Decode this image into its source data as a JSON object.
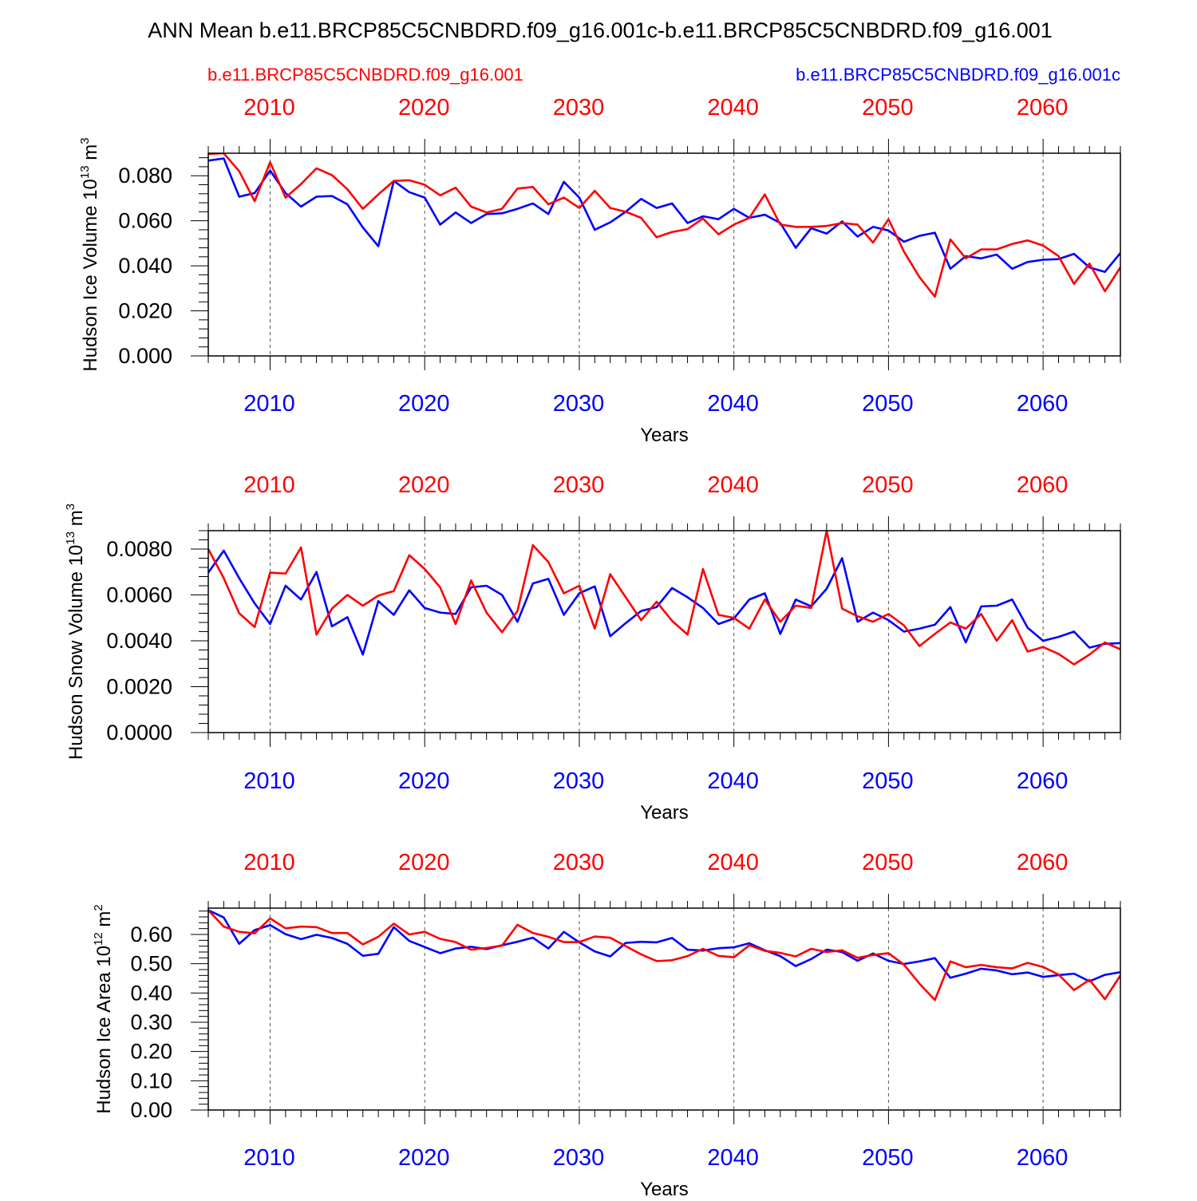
{
  "title": "ANN Mean b.e11.BRCP85C5CNBDRD.f09_g16.001c-b.e11.BRCP85C5CNBDRD.f09_g16.001",
  "legend": {
    "left_label": "b.e11.BRCP85C5CNBDRD.f09_g16.001",
    "right_label": "b.e11.BRCP85C5CNBDRD.f09_g16.001c",
    "left_color": "#ff0000",
    "right_color": "#0000ff"
  },
  "colors": {
    "case_a": "#ff0000",
    "case_b": "#0000ff",
    "axis": "#000000",
    "grid": "#555555"
  },
  "chart_data": [
    {
      "type": "line",
      "xlabel": "Years",
      "ylabel": "Hudson Ice Volume 10",
      "ylabel_sup": "13",
      "ylabel_unit": "m",
      "ylabel_unit_sup": "3",
      "xlim": [
        2006,
        2065
      ],
      "ylim": [
        0,
        0.09
      ],
      "xticks": [
        2010,
        2020,
        2030,
        2040,
        2050,
        2060
      ],
      "xtick_labels": [
        "2010",
        "2020",
        "2030",
        "2040",
        "2050",
        "2060"
      ],
      "yticks": [
        0,
        0.02,
        0.04,
        0.06,
        0.08
      ],
      "ytick_labels": [
        "0.000",
        "0.020",
        "0.040",
        "0.060",
        "0.080"
      ],
      "x": [
        2006,
        2007,
        2008,
        2009,
        2010,
        2011,
        2012,
        2013,
        2014,
        2015,
        2016,
        2017,
        2018,
        2019,
        2020,
        2021,
        2022,
        2023,
        2024,
        2025,
        2026,
        2027,
        2028,
        2029,
        2030,
        2031,
        2032,
        2033,
        2034,
        2035,
        2036,
        2037,
        2038,
        2039,
        2040,
        2041,
        2042,
        2043,
        2044,
        2045,
        2046,
        2047,
        2048,
        2049,
        2050,
        2051,
        2052,
        2053,
        2054,
        2055,
        2056,
        2057,
        2058,
        2059,
        2060,
        2061,
        2062,
        2063,
        2064,
        2065
      ],
      "series": [
        {
          "name": "b.e11.BRCP85C5CNBDRD.f09_g16.001",
          "color": "#ff0000",
          "values": [
            0.0897,
            0.09,
            0.082,
            0.0687,
            0.086,
            0.0703,
            0.0763,
            0.0833,
            0.0803,
            0.074,
            0.0653,
            0.0717,
            0.0777,
            0.078,
            0.076,
            0.0713,
            0.0747,
            0.0663,
            0.0637,
            0.0653,
            0.0743,
            0.075,
            0.0673,
            0.0703,
            0.0657,
            0.0733,
            0.0657,
            0.064,
            0.0613,
            0.0527,
            0.055,
            0.0563,
            0.061,
            0.054,
            0.0583,
            0.0613,
            0.0717,
            0.0583,
            0.0573,
            0.0573,
            0.0577,
            0.059,
            0.0583,
            0.0503,
            0.0607,
            0.0463,
            0.035,
            0.0263,
            0.0517,
            0.0433,
            0.0473,
            0.0473,
            0.0497,
            0.0513,
            0.049,
            0.0443,
            0.032,
            0.041,
            0.0287,
            0.0393
          ]
        },
        {
          "name": "b.e11.BRCP85C5CNBDRD.f09_g16.001c",
          "color": "#0000ff",
          "values": [
            0.0867,
            0.0877,
            0.0707,
            0.0723,
            0.0823,
            0.0723,
            0.0663,
            0.0707,
            0.071,
            0.0673,
            0.057,
            0.0487,
            0.0777,
            0.0727,
            0.0703,
            0.0583,
            0.0637,
            0.059,
            0.063,
            0.0633,
            0.0653,
            0.0677,
            0.063,
            0.0773,
            0.0703,
            0.056,
            0.0593,
            0.064,
            0.0697,
            0.0657,
            0.0677,
            0.059,
            0.062,
            0.0607,
            0.0653,
            0.0613,
            0.0627,
            0.059,
            0.048,
            0.0567,
            0.0543,
            0.0597,
            0.053,
            0.0573,
            0.0557,
            0.0507,
            0.0533,
            0.0547,
            0.0387,
            0.0443,
            0.0433,
            0.045,
            0.0387,
            0.0417,
            0.0427,
            0.043,
            0.0453,
            0.0393,
            0.0373,
            0.0457
          ]
        }
      ]
    },
    {
      "type": "line",
      "xlabel": "Years",
      "ylabel": "Hudson Snow Volume 10",
      "ylabel_sup": "13",
      "ylabel_unit": "m",
      "ylabel_unit_sup": "3",
      "xlim": [
        2006,
        2065
      ],
      "ylim": [
        0,
        0.0088
      ],
      "xticks": [
        2010,
        2020,
        2030,
        2040,
        2050,
        2060
      ],
      "xtick_labels": [
        "2010",
        "2020",
        "2030",
        "2040",
        "2050",
        "2060"
      ],
      "yticks": [
        0,
        0.002,
        0.004,
        0.006,
        0.008
      ],
      "ytick_labels": [
        "0.0000",
        "0.0020",
        "0.0040",
        "0.0060",
        "0.0080"
      ],
      "x": [
        2006,
        2007,
        2008,
        2009,
        2010,
        2011,
        2012,
        2013,
        2014,
        2015,
        2016,
        2017,
        2018,
        2019,
        2020,
        2021,
        2022,
        2023,
        2024,
        2025,
        2026,
        2027,
        2028,
        2029,
        2030,
        2031,
        2032,
        2033,
        2034,
        2035,
        2036,
        2037,
        2038,
        2039,
        2040,
        2041,
        2042,
        2043,
        2044,
        2045,
        2046,
        2047,
        2048,
        2049,
        2050,
        2051,
        2052,
        2053,
        2054,
        2055,
        2056,
        2057,
        2058,
        2059,
        2060,
        2061,
        2062,
        2063,
        2064,
        2065
      ],
      "series": [
        {
          "name": "b.e11.BRCP85C5CNBDRD.f09_g16.001",
          "color": "#ff0000",
          "values": [
            0.008,
            0.00673,
            0.0052,
            0.0046,
            0.00697,
            0.00693,
            0.00807,
            0.00427,
            0.0054,
            0.006,
            0.00553,
            0.00597,
            0.00617,
            0.00773,
            0.00713,
            0.00633,
            0.00473,
            0.00663,
            0.00523,
            0.00437,
            0.0053,
            0.00817,
            0.00743,
            0.00607,
            0.0064,
            0.00453,
            0.0069,
            0.0059,
            0.0049,
            0.0057,
            0.00487,
            0.00427,
            0.00713,
            0.00513,
            0.005,
            0.00453,
            0.0058,
            0.00483,
            0.00553,
            0.00543,
            0.0088,
            0.0054,
            0.00507,
            0.00483,
            0.00517,
            0.00467,
            0.00377,
            0.0043,
            0.0048,
            0.00453,
            0.00517,
            0.004,
            0.0049,
            0.00353,
            0.00373,
            0.00343,
            0.00297,
            0.0034,
            0.00393,
            0.00363
          ]
        },
        {
          "name": "b.e11.BRCP85C5CNBDRD.f09_g16.001c",
          "color": "#0000ff",
          "values": [
            0.00697,
            0.00793,
            0.00673,
            0.00563,
            0.00473,
            0.0064,
            0.0058,
            0.007,
            0.00463,
            0.00503,
            0.0034,
            0.00573,
            0.00513,
            0.0062,
            0.00543,
            0.00523,
            0.00517,
            0.00633,
            0.0064,
            0.006,
            0.00483,
            0.0065,
            0.0067,
            0.00513,
            0.00607,
            0.00637,
            0.0042,
            0.00477,
            0.0053,
            0.00547,
            0.0063,
            0.0059,
            0.00543,
            0.00473,
            0.00497,
            0.0058,
            0.00607,
            0.0043,
            0.0058,
            0.0055,
            0.00627,
            0.0076,
            0.00483,
            0.00523,
            0.0049,
            0.0044,
            0.00453,
            0.0047,
            0.00547,
            0.00393,
            0.0055,
            0.00553,
            0.0058,
            0.00457,
            0.004,
            0.00417,
            0.0044,
            0.0037,
            0.00387,
            0.0039
          ]
        }
      ]
    },
    {
      "type": "line",
      "xlabel": "Years",
      "ylabel": "Hudson Ice Area 10",
      "ylabel_sup": "12",
      "ylabel_unit": "m",
      "ylabel_unit_sup": "2",
      "xlim": [
        2006,
        2065
      ],
      "ylim": [
        0,
        0.69
      ],
      "xticks": [
        2010,
        2020,
        2030,
        2040,
        2050,
        2060
      ],
      "xtick_labels": [
        "2010",
        "2020",
        "2030",
        "2040",
        "2050",
        "2060"
      ],
      "yticks": [
        0,
        0.1,
        0.2,
        0.3,
        0.4,
        0.5,
        0.6
      ],
      "ytick_labels": [
        "0.00",
        "0.10",
        "0.20",
        "0.30",
        "0.40",
        "0.50",
        "0.60"
      ],
      "x": [
        2006,
        2007,
        2008,
        2009,
        2010,
        2011,
        2012,
        2013,
        2014,
        2015,
        2016,
        2017,
        2018,
        2019,
        2020,
        2021,
        2022,
        2023,
        2024,
        2025,
        2026,
        2027,
        2028,
        2029,
        2030,
        2031,
        2032,
        2033,
        2034,
        2035,
        2036,
        2037,
        2038,
        2039,
        2040,
        2041,
        2042,
        2043,
        2044,
        2045,
        2046,
        2047,
        2048,
        2049,
        2050,
        2051,
        2052,
        2053,
        2054,
        2055,
        2056,
        2057,
        2058,
        2059,
        2060,
        2061,
        2062,
        2063,
        2064,
        2065
      ],
      "series": [
        {
          "name": "b.e11.BRCP85C5CNBDRD.f09_g16.001",
          "color": "#ff0000",
          "values": [
            0.683,
            0.627,
            0.609,
            0.604,
            0.655,
            0.621,
            0.627,
            0.625,
            0.605,
            0.605,
            0.566,
            0.592,
            0.637,
            0.6,
            0.609,
            0.585,
            0.574,
            0.548,
            0.554,
            0.562,
            0.633,
            0.605,
            0.592,
            0.574,
            0.574,
            0.593,
            0.589,
            0.56,
            0.532,
            0.509,
            0.512,
            0.526,
            0.551,
            0.527,
            0.522,
            0.563,
            0.544,
            0.537,
            0.525,
            0.551,
            0.54,
            0.546,
            0.52,
            0.53,
            0.536,
            0.497,
            0.432,
            0.376,
            0.508,
            0.488,
            0.496,
            0.488,
            0.484,
            0.503,
            0.489,
            0.463,
            0.41,
            0.445,
            0.379,
            0.46
          ]
        },
        {
          "name": "b.e11.BRCP85C5CNBDRD.f09_g16.001c",
          "color": "#0000ff",
          "values": [
            0.683,
            0.658,
            0.568,
            0.615,
            0.632,
            0.601,
            0.584,
            0.599,
            0.588,
            0.568,
            0.527,
            0.534,
            0.625,
            0.578,
            0.557,
            0.536,
            0.552,
            0.558,
            0.55,
            0.563,
            0.575,
            0.589,
            0.552,
            0.609,
            0.573,
            0.542,
            0.525,
            0.571,
            0.575,
            0.573,
            0.588,
            0.548,
            0.545,
            0.553,
            0.556,
            0.57,
            0.546,
            0.526,
            0.492,
            0.516,
            0.548,
            0.54,
            0.51,
            0.535,
            0.51,
            0.499,
            0.508,
            0.519,
            0.452,
            0.466,
            0.483,
            0.477,
            0.464,
            0.47,
            0.455,
            0.461,
            0.466,
            0.44,
            0.462,
            0.471
          ]
        }
      ]
    }
  ]
}
